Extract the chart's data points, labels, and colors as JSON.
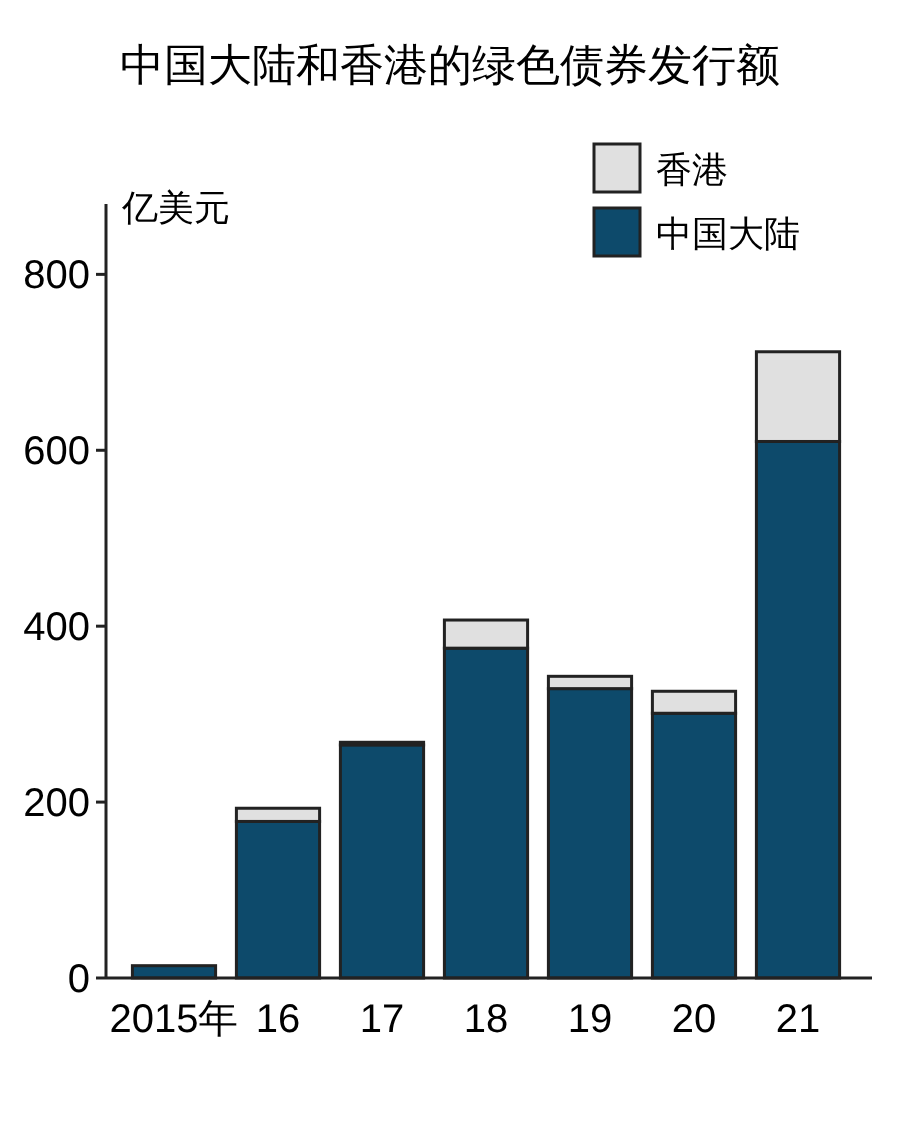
{
  "chart_data": {
    "type": "bar",
    "title": "中国大陆和香港的绿色债券发行额",
    "ylabel": "亿美元",
    "categories": [
      "2015年",
      "16",
      "17",
      "18",
      "19",
      "20",
      "21"
    ],
    "series": [
      {
        "name": "中国大陆",
        "color": "#0d4a6b",
        "values": [
          14,
          178,
          265,
          375,
          329,
          301,
          610
        ]
      },
      {
        "name": "香港",
        "color": "#e0e0e0",
        "values": [
          0,
          15,
          3,
          32,
          14,
          25,
          102
        ]
      }
    ],
    "stacked": true,
    "ylim": [
      0,
      880
    ],
    "yticks": [
      0,
      200,
      400,
      600,
      800
    ],
    "grid": false,
    "legend": "top right"
  }
}
